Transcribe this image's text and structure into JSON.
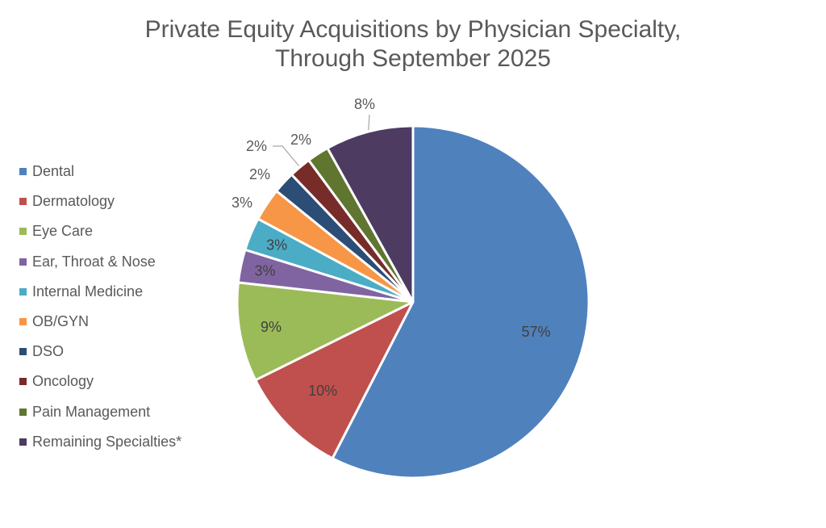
{
  "chart_data": {
    "type": "pie",
    "title": "Private Equity Acquisitions by Physician Specialty, Through September 2025",
    "title_lines": [
      "Private Equity Acquisitions by Physician Specialty,",
      "Through September 2025"
    ],
    "legend_position": "left",
    "start_angle": "12 o'clock, clockwise",
    "slices": [
      {
        "label": "Dental",
        "value": 57,
        "display": "57%",
        "color": "#4F81BD"
      },
      {
        "label": "Dermatology",
        "value": 10,
        "display": "10%",
        "color": "#C0504D"
      },
      {
        "label": "Eye Care",
        "value": 9,
        "display": "9%",
        "color": "#9BBB59"
      },
      {
        "label": "Ear, Throat & Nose",
        "value": 3,
        "display": "3%",
        "color": "#8064A2"
      },
      {
        "label": "Internal Medicine",
        "value": 3,
        "display": "3%",
        "color": "#4BACC6"
      },
      {
        "label": "OB/GYN",
        "value": 3,
        "display": "3%",
        "color": "#F79646"
      },
      {
        "label": "DSO",
        "value": 2,
        "display": "2%",
        "color": "#2C4D75"
      },
      {
        "label": "Oncology",
        "value": 2,
        "display": "2%",
        "color": "#772C2A"
      },
      {
        "label": "Pain Management",
        "value": 2,
        "display": "2%",
        "color": "#5F7530"
      },
      {
        "label": "Remaining Specialties*",
        "value": 8,
        "display": "8%",
        "color": "#4D3B62"
      }
    ]
  }
}
